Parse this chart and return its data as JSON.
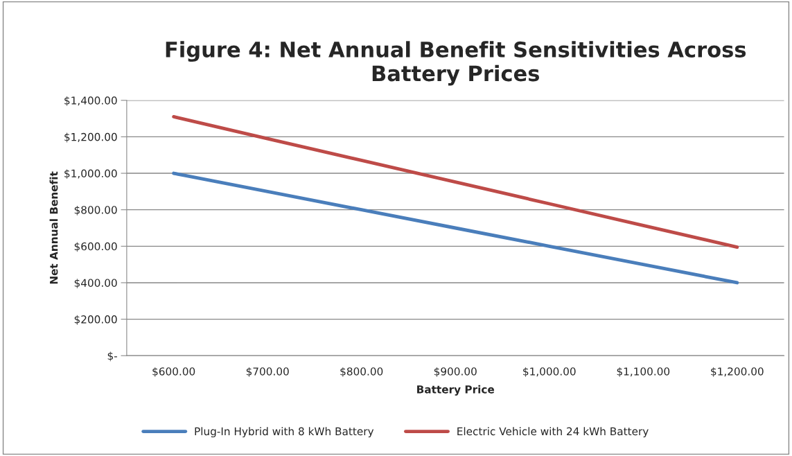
{
  "chart_data": {
    "type": "line",
    "title": "Figure 4: Net Annual Benefit Sensitivities Across\nBattery Prices",
    "xlabel": "Battery Price",
    "ylabel": "Net Annual Benefit",
    "categories": [
      "$600.00",
      "$700.00",
      "$800.00",
      "$900.00",
      "$1,000.00",
      "$1,100.00",
      "$1,200.00"
    ],
    "series": [
      {
        "name": "Plug-In Hybrid with 8 kWh Battery",
        "color": "#4a7ebb",
        "values": [
          1000,
          900,
          800,
          700,
          600,
          500,
          400
        ]
      },
      {
        "name": "Electric Vehicle with 24 kWh Battery",
        "color": "#be4b48",
        "values": [
          1310,
          1190,
          1071,
          952,
          833,
          714,
          595
        ]
      }
    ],
    "ylim": [
      0,
      1400
    ],
    "yticks": [
      {
        "value": 0,
        "label": "$-"
      },
      {
        "value": 200,
        "label": "$200.00"
      },
      {
        "value": 400,
        "label": "$400.00"
      },
      {
        "value": 600,
        "label": "$600.00"
      },
      {
        "value": 800,
        "label": "$800.00"
      },
      {
        "value": 1000,
        "label": "$1,000.00"
      },
      {
        "value": 1200,
        "label": "$1,200.00"
      },
      {
        "value": 1400,
        "label": "$1,400.00"
      }
    ],
    "grid": "y",
    "legend": "bottom",
    "marker": "none",
    "line_style": "solid"
  }
}
